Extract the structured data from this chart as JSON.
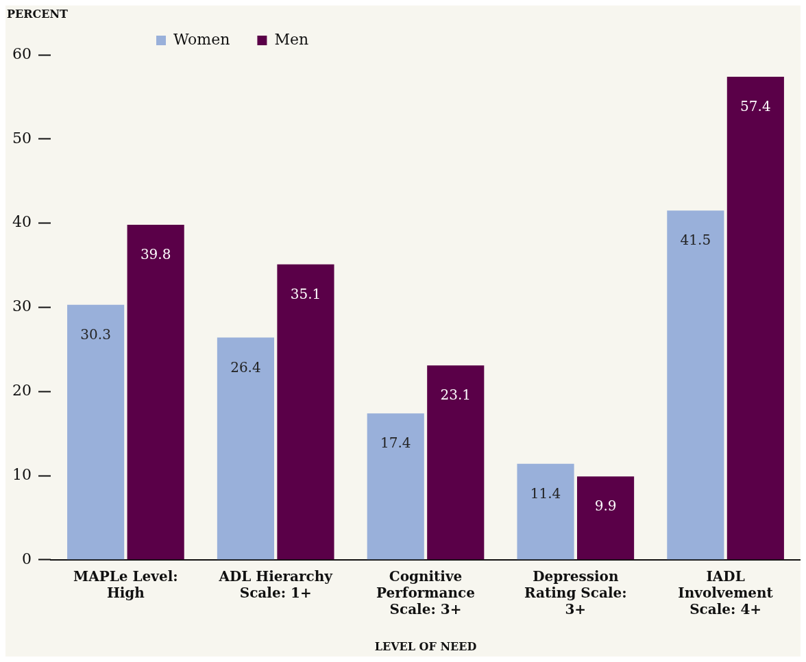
{
  "chart_data": {
    "type": "bar",
    "ylabel": "PERCENT",
    "xlabel": "LEVEL OF NEED",
    "categories": [
      "MAPLe Level: High",
      "ADL Hierarchy Scale: 1+",
      "Cognitive Performance Scale: 3+",
      "Depression Rating Scale: 3+",
      "IADL Involvement Scale: 4+"
    ],
    "series": [
      {
        "name": "Women",
        "color": "#99b0da",
        "values": [
          30.3,
          26.4,
          17.4,
          11.4,
          41.5
        ]
      },
      {
        "name": "Men",
        "color": "#5a0048",
        "values": [
          39.8,
          35.1,
          23.1,
          9.9,
          57.4
        ]
      }
    ],
    "ylim": [
      0,
      60
    ],
    "yticks": [
      0,
      10,
      20,
      30,
      40,
      50,
      60
    ],
    "grid": false,
    "legend": "top left",
    "data_labels": true
  }
}
